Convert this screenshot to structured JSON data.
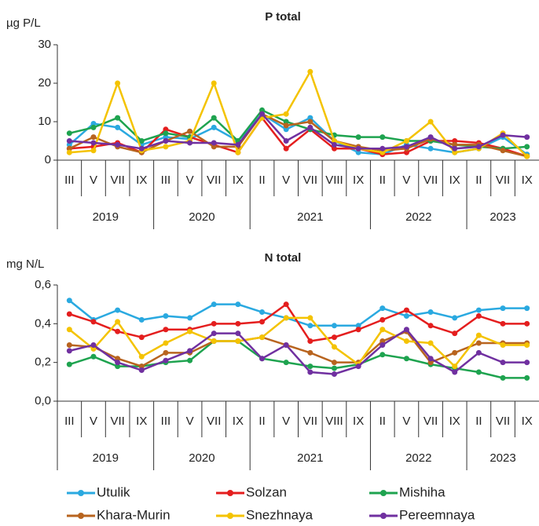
{
  "chart_data": [
    {
      "type": "line",
      "title": "P total",
      "y_label": "µg P/L",
      "categories": [
        "III",
        "V",
        "VII",
        "IX",
        "III",
        "V",
        "VII",
        "IX",
        "II",
        "V",
        "VII",
        "VIII",
        "IX",
        "II",
        "V",
        "VII",
        "IX",
        "II",
        "VII",
        "IX"
      ],
      "category_groups": [
        {
          "label": "2019",
          "size": 4
        },
        {
          "label": "2020",
          "size": 4
        },
        {
          "label": "2021",
          "size": 5
        },
        {
          "label": "2022",
          "size": 4
        },
        {
          "label": "2023",
          "size": 3
        }
      ],
      "ylim": [
        0,
        30
      ],
      "yticks": [
        0,
        10,
        20,
        30
      ],
      "series": [
        {
          "name": "Utulik",
          "color": "#2aa9e0",
          "values": [
            4,
            9.5,
            8.5,
            4,
            6,
            5.5,
            8.5,
            5,
            12,
            8,
            11,
            5,
            2,
            1.5,
            4,
            3,
            2,
            3,
            6,
            1.5
          ]
        },
        {
          "name": "Solzan",
          "color": "#e41e1e",
          "values": [
            3,
            3.5,
            4.5,
            2,
            8,
            6,
            4,
            2,
            11,
            3,
            8,
            3,
            3,
            1.5,
            2,
            5,
            5,
            4.5,
            3,
            1
          ]
        },
        {
          "name": "Mishiha",
          "color": "#1ea34f",
          "values": [
            7,
            8.5,
            11,
            5,
            7,
            6,
            11,
            5,
            13,
            10,
            8,
            6.5,
            6,
            6,
            5,
            5,
            4,
            3.5,
            3,
            3.5
          ]
        },
        {
          "name": "Khara-Murin",
          "color": "#b8641f",
          "values": [
            3,
            6,
            3.5,
            2,
            5,
            7.5,
            3.5,
            3.5,
            12,
            9,
            10,
            5,
            3.5,
            2.5,
            3,
            5.5,
            4,
            4,
            2.5,
            1
          ]
        },
        {
          "name": "Snezhnaya",
          "color": "#f4c300",
          "values": [
            2,
            2.5,
            20,
            2.5,
            3.5,
            5,
            20,
            2,
            11,
            12,
            23,
            5,
            3,
            2,
            5,
            10,
            2,
            3,
            7,
            1
          ]
        },
        {
          "name": "Pereemnaya",
          "color": "#7030a0",
          "values": [
            5,
            4.5,
            4,
            3,
            5,
            4.5,
            4.5,
            4,
            12,
            5,
            8.5,
            4,
            3,
            3,
            3.5,
            6,
            3,
            3.5,
            6.5,
            6
          ]
        }
      ]
    },
    {
      "type": "line",
      "title": "N total",
      "y_label": "mg N/L",
      "categories": [
        "III",
        "V",
        "VII",
        "IX",
        "III",
        "V",
        "VII",
        "IX",
        "II",
        "V",
        "VII",
        "VIII",
        "IX",
        "II",
        "V",
        "VII",
        "IX",
        "II",
        "VII",
        "IX"
      ],
      "category_groups": [
        {
          "label": "2019",
          "size": 4
        },
        {
          "label": "2020",
          "size": 4
        },
        {
          "label": "2021",
          "size": 5
        },
        {
          "label": "2022",
          "size": 4
        },
        {
          "label": "2023",
          "size": 3
        }
      ],
      "ylim": [
        0,
        0.6
      ],
      "yticks": [
        {
          "value": 0,
          "label": "0,0"
        },
        {
          "value": 0.2,
          "label": "0,2"
        },
        {
          "value": 0.4,
          "label": "0,4"
        },
        {
          "value": 0.6,
          "label": "0,6"
        }
      ],
      "series": [
        {
          "color": "#2aa9e0",
          "values": [
            0.52,
            0.42,
            0.47,
            0.42,
            0.44,
            0.43,
            0.5,
            0.5,
            0.46,
            0.43,
            0.39,
            0.39,
            0.39,
            0.48,
            0.44,
            0.46,
            0.43,
            0.47,
            0.48,
            0.48
          ]
        },
        {
          "color": "#e41e1e",
          "values": [
            0.45,
            0.41,
            0.36,
            0.33,
            0.37,
            0.37,
            0.4,
            0.4,
            0.41,
            0.5,
            0.31,
            0.33,
            0.37,
            0.42,
            0.47,
            0.39,
            0.35,
            0.44,
            0.4,
            0.4
          ]
        },
        {
          "color": "#1ea34f",
          "values": [
            0.19,
            0.23,
            0.18,
            0.18,
            0.2,
            0.21,
            0.31,
            0.31,
            0.22,
            0.2,
            0.18,
            0.17,
            0.19,
            0.24,
            0.22,
            0.19,
            0.17,
            0.15,
            0.12,
            0.12
          ]
        },
        {
          "color": "#b8641f",
          "values": [
            0.29,
            0.28,
            0.22,
            0.18,
            0.25,
            0.25,
            0.31,
            0.31,
            0.33,
            0.29,
            0.25,
            0.2,
            0.2,
            0.31,
            0.36,
            0.2,
            0.25,
            0.3,
            0.3,
            0.3
          ]
        },
        {
          "color": "#f4c300",
          "values": [
            0.37,
            0.27,
            0.41,
            0.23,
            0.3,
            0.36,
            0.31,
            0.31,
            0.33,
            0.43,
            0.43,
            0.28,
            0.19,
            0.37,
            0.31,
            0.3,
            0.18,
            0.34,
            0.29,
            0.29
          ]
        },
        {
          "color": "#7030a0",
          "values": [
            0.26,
            0.29,
            0.2,
            0.16,
            0.21,
            0.26,
            0.35,
            0.35,
            0.22,
            0.29,
            0.15,
            0.14,
            0.18,
            0.29,
            0.37,
            0.22,
            0.15,
            0.25,
            0.2,
            0.2
          ]
        }
      ]
    }
  ]
}
